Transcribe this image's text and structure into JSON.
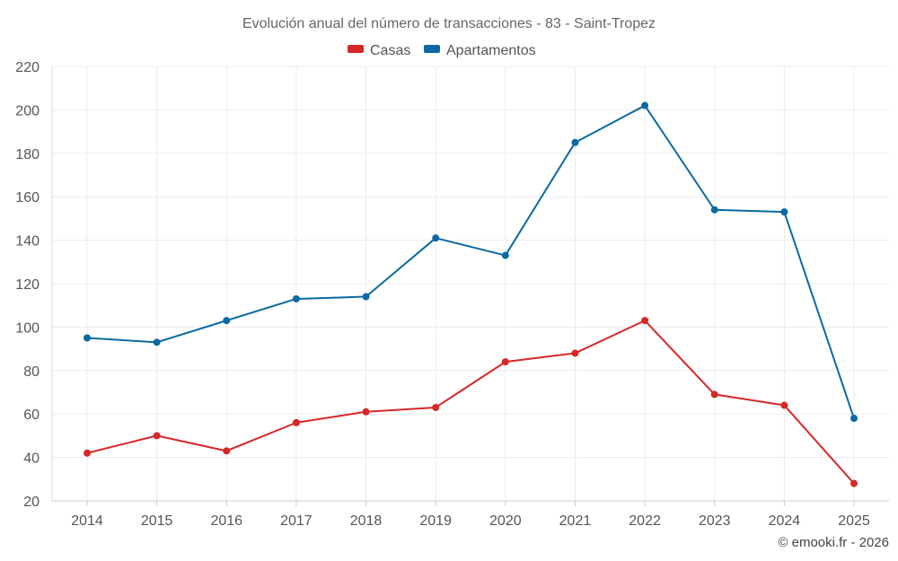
{
  "chart_data": {
    "type": "line",
    "title": "Evolución anual del número de transacciones - 83 - Saint-Tropez",
    "categories": [
      "2014",
      "2015",
      "2016",
      "2017",
      "2018",
      "2019",
      "2020",
      "2021",
      "2022",
      "2023",
      "2024",
      "2025"
    ],
    "series": [
      {
        "name": "Casas",
        "color": "#d62728",
        "values": [
          42,
          50,
          43,
          56,
          61,
          63,
          84,
          88,
          103,
          69,
          64,
          28
        ]
      },
      {
        "name": "Apartamentos",
        "color": "#0a6aa1",
        "values": [
          95,
          93,
          103,
          113,
          114,
          141,
          133,
          185,
          202,
          154,
          153,
          58
        ]
      }
    ],
    "ylim": [
      20,
      220
    ],
    "yticks": [
      20,
      40,
      60,
      80,
      100,
      120,
      140,
      160,
      180,
      200,
      220
    ],
    "grid": true,
    "legend": "top-center",
    "xlabel": "",
    "ylabel": ""
  },
  "credit": "© emooki.fr - 2026"
}
